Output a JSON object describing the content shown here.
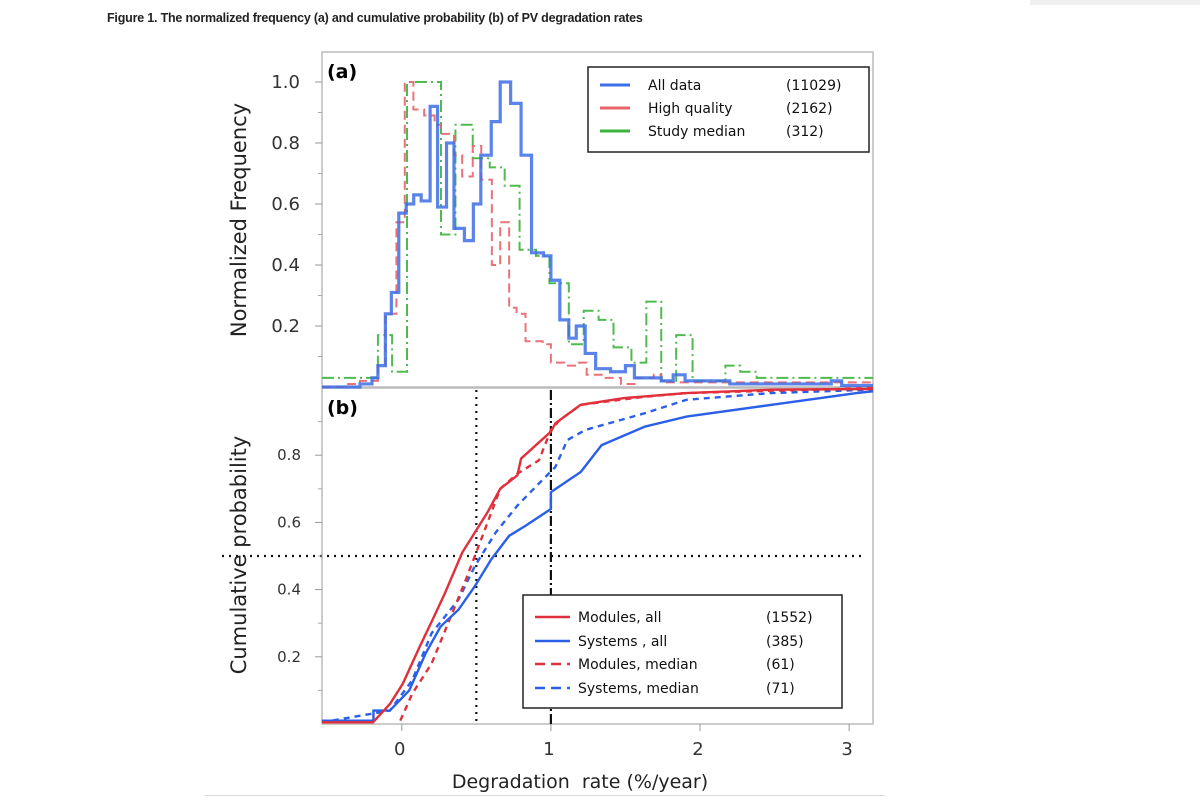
{
  "figure_caption": "Figure 1. The normalized frequency (a) and cumulative probability (b) of PV degradation rates",
  "chart_data": [
    {
      "type": "line",
      "panel_label": "(a)",
      "ylabel": "Normalized Frequency",
      "xlabel": "",
      "xlim": [
        -0.535,
        3.16
      ],
      "ylim": [
        0,
        1.1
      ],
      "yticks": [
        "1.0",
        "0.8",
        "0.6",
        "0.4",
        "0.2"
      ],
      "yticks_values": [
        1.0,
        0.8,
        0.6,
        0.4,
        0.2
      ],
      "grid": false,
      "legend_position": "top-right",
      "style": "step histogram",
      "series": [
        {
          "name": "All data",
          "count": "(11029)",
          "color": "#3d6fe6",
          "dash": "solid",
          "x": [
            -0.535,
            -0.28,
            -0.2,
            -0.16,
            -0.11,
            -0.07,
            -0.02,
            0.03,
            0.08,
            0.13,
            0.19,
            0.24,
            0.3,
            0.35,
            0.42,
            0.48,
            0.53,
            0.6,
            0.66,
            0.73,
            0.8,
            0.87,
            0.95,
            1.0,
            1.06,
            1.12,
            1.17,
            1.23,
            1.3,
            1.4,
            1.5,
            1.56,
            1.74,
            1.82,
            1.9,
            2.2,
            2.88,
            2.95
          ],
          "y": [
            0,
            0.01,
            0.03,
            0.07,
            0.24,
            0.31,
            0.57,
            0.6,
            0.63,
            0.61,
            0.92,
            0.59,
            0.8,
            0.52,
            0.48,
            0.6,
            0.76,
            0.87,
            1.0,
            0.93,
            0.76,
            0.44,
            0.43,
            0.35,
            0.22,
            0.16,
            0.2,
            0.11,
            0.06,
            0.05,
            0.07,
            0.03,
            0.02,
            0.04,
            0.02,
            0.01,
            0.02,
            0.005
          ]
        },
        {
          "name": "High quality",
          "count": "(2162)",
          "color": "#e8636b",
          "dash": "dashed",
          "x": [
            -0.535,
            -0.36,
            -0.28,
            -0.16,
            -0.11,
            -0.036,
            0.02,
            0.078,
            0.15,
            0.22,
            0.263,
            0.35,
            0.405,
            0.476,
            0.533,
            0.604,
            0.66,
            0.72,
            0.77,
            0.83,
            0.945,
            1.0,
            1.09,
            1.19,
            1.24,
            1.36,
            1.47,
            1.57,
            1.69,
            1.74
          ],
          "y": [
            0,
            0.01,
            0.02,
            0.07,
            0.24,
            0.54,
            1.0,
            0.91,
            0.89,
            0.86,
            0.83,
            0.76,
            0.69,
            0.79,
            0.68,
            0.4,
            0.54,
            0.26,
            0.24,
            0.15,
            0.14,
            0.08,
            0.07,
            0.08,
            0.04,
            0.03,
            0.01,
            0.03,
            0.04,
            0.015
          ]
        },
        {
          "name": "Study median",
          "count": "(312)",
          "color": "#3cb43c",
          "dash": "dash-dot",
          "x": [
            -0.535,
            -0.16,
            -0.065,
            0.035,
            0.263,
            0.36,
            0.476,
            0.59,
            0.69,
            0.79,
            0.9,
            0.99,
            1.12,
            1.22,
            1.32,
            1.42,
            1.54,
            1.64,
            1.74,
            1.84,
            1.95,
            2.17,
            2.27,
            2.38
          ],
          "y": [
            0.03,
            0.17,
            0.05,
            1.0,
            0.5,
            0.86,
            0.75,
            0.72,
            0.66,
            0.45,
            0.43,
            0.34,
            0.14,
            0.25,
            0.22,
            0.13,
            0.08,
            0.28,
            0.02,
            0.17,
            0.02,
            0.07,
            0.05,
            0.03
          ]
        }
      ]
    },
    {
      "type": "line",
      "panel_label": "(b)",
      "ylabel": "Cumulative probability",
      "xlabel": "Degradation  rate (%/year)",
      "xlim": [
        -0.535,
        3.16
      ],
      "ylim": [
        0,
        1.0
      ],
      "xticks": [
        "0",
        "1",
        "2",
        "3"
      ],
      "xticks_values": [
        0,
        1,
        2,
        3
      ],
      "yticks": [
        "0.8",
        "0.6",
        "0.4",
        "0.2"
      ],
      "yticks_values": [
        0.8,
        0.6,
        0.4,
        0.2
      ],
      "grid": false,
      "legend_position": "bottom-right",
      "reference_lines": [
        {
          "orientation": "vertical",
          "value": 0.5,
          "style": "dotted"
        },
        {
          "orientation": "vertical",
          "value": 1.0,
          "style": "dash-dot"
        },
        {
          "orientation": "horizontal",
          "value": 0.5,
          "style": "dotted"
        }
      ],
      "series": [
        {
          "name": "Modules, all",
          "count": "(1552)",
          "color": "#e0303c",
          "dash": "solid",
          "x": [
            -0.535,
            -0.193,
            -0.079,
            0.007,
            0.12,
            0.206,
            0.29,
            0.405,
            0.49,
            0.575,
            0.66,
            0.775,
            0.8,
            1.0,
            1.03,
            1.2,
            1.49,
            1.91,
            2.48,
            3.16
          ],
          "y": [
            0.005,
            0.005,
            0.06,
            0.12,
            0.23,
            0.31,
            0.39,
            0.51,
            0.57,
            0.63,
            0.7,
            0.74,
            0.79,
            0.87,
            0.895,
            0.95,
            0.97,
            0.985,
            0.995,
            0.997
          ]
        },
        {
          "name": "Systems , all",
          "count": "(385)",
          "color": "#2a5fe8",
          "dash": "solid",
          "x": [
            -0.535,
            -0.19,
            -0.19,
            -0.08,
            0.05,
            0.16,
            0.26,
            0.38,
            0.49,
            0.6,
            0.72,
            0.83,
            1.0,
            1.0,
            1.2,
            1.34,
            1.63,
            1.91,
            2.48,
            3.05,
            3.16
          ],
          "y": [
            0.01,
            0.01,
            0.04,
            0.04,
            0.1,
            0.21,
            0.29,
            0.34,
            0.41,
            0.49,
            0.56,
            0.59,
            0.64,
            0.69,
            0.75,
            0.83,
            0.885,
            0.915,
            0.95,
            0.985,
            0.99
          ]
        },
        {
          "name": "Modules, median",
          "count": "(61)",
          "color": "#e0303c",
          "dash": "dashed",
          "x": [
            -0.01,
            0.07,
            0.2,
            0.32,
            0.43,
            0.55,
            0.66,
            0.775,
            0.92,
            1.0,
            1.06,
            1.2,
            1.63,
            1.91,
            3.16
          ],
          "y": [
            0.01,
            0.09,
            0.18,
            0.31,
            0.43,
            0.57,
            0.7,
            0.745,
            0.785,
            0.875,
            0.905,
            0.95,
            0.974,
            0.985,
            1.0
          ]
        },
        {
          "name": "Systems, median",
          "count": "(71)",
          "color": "#2a5fe8",
          "dash": "dashed",
          "x": [
            -0.535,
            -0.08,
            0.07,
            0.2,
            0.38,
            0.49,
            0.63,
            0.775,
            0.94,
            1.03,
            1.11,
            1.23,
            1.63,
            1.91,
            2.48,
            3.16
          ],
          "y": [
            0.005,
            0.04,
            0.13,
            0.27,
            0.37,
            0.47,
            0.57,
            0.65,
            0.725,
            0.765,
            0.845,
            0.875,
            0.925,
            0.965,
            0.985,
            0.995
          ]
        }
      ]
    }
  ]
}
